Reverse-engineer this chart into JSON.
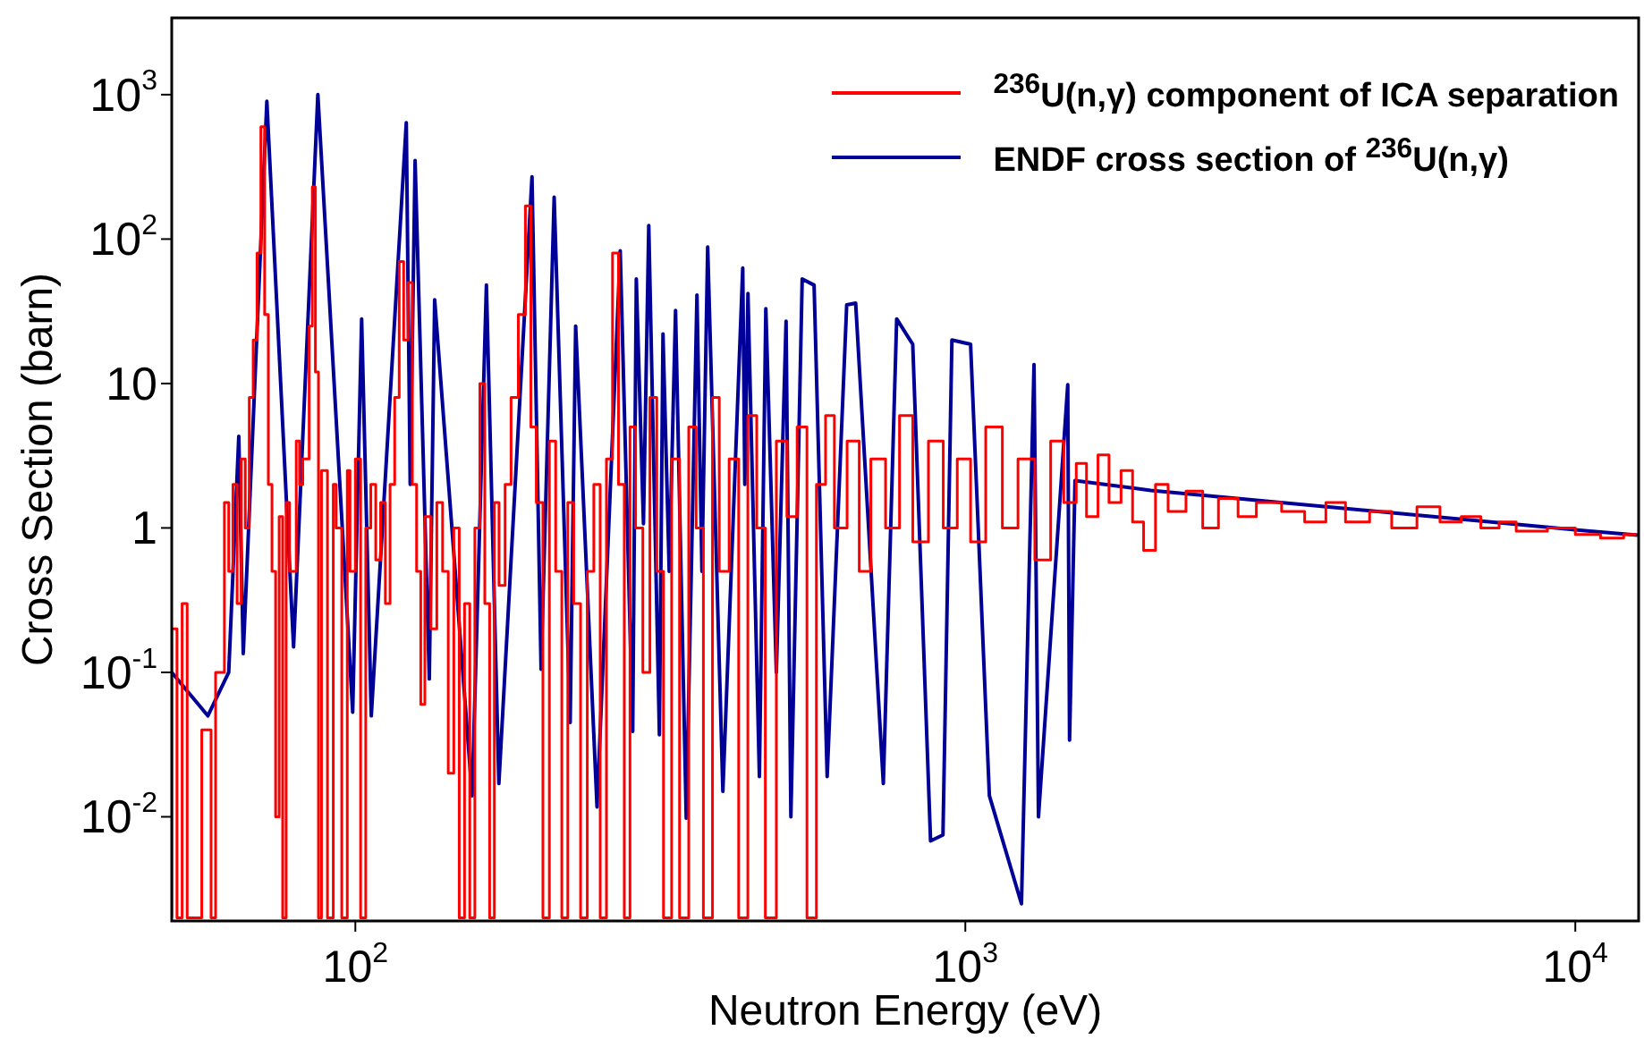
{
  "chart_data": {
    "type": "line",
    "xlabel": "Neutron Energy (eV)",
    "ylabel": "Cross Section (barn)",
    "log": "xy",
    "legend": "top right",
    "marker": "none",
    "xlim": [
      50,
      12700
    ],
    "ylim": [
      0.0019,
      3400
    ],
    "xticks": [
      {
        "value": 100,
        "label": "10$^{2}$"
      },
      {
        "value": 1000,
        "label": "10$^{3}$"
      },
      {
        "value": 10000,
        "label": "10$^{4}$"
      }
    ],
    "yticks": [
      {
        "value": 0.01,
        "label": "10$^{-2}$"
      },
      {
        "value": 0.1,
        "label": "10$^{-1}$"
      },
      1,
      10,
      {
        "value": 100,
        "label": "10$^{2}$"
      },
      {
        "value": 1000,
        "label": "10$^{3}$"
      }
    ],
    "series": [
      {
        "name": "$^{236}$U(n,γ) component of ICA separation",
        "type": "step",
        "color": "#ff0000",
        "x": [
          50,
          51,
          52,
          53,
          54,
          56,
          58,
          59,
          61,
          62,
          63,
          64,
          65,
          66,
          67,
          68,
          69,
          70,
          71,
          72,
          73,
          74,
          75,
          76,
          77,
          78,
          80,
          81,
          82,
          84,
          85,
          86,
          87,
          88,
          90,
          92,
          93,
          95,
          97,
          98,
          100,
          102,
          104,
          106,
          108,
          110,
          112,
          114,
          116,
          118,
          120,
          122,
          124,
          126,
          128,
          130,
          133,
          136,
          139,
          142,
          145,
          148,
          151,
          154,
          157,
          160,
          163,
          166,
          169,
          172,
          176,
          180,
          185,
          190,
          194,
          198,
          203,
          208,
          213,
          218,
          223,
          228,
          234,
          240,
          246,
          252,
          258,
          264,
          270,
          276,
          282,
          288,
          296,
          304,
          312,
          320,
          330,
          340,
          352,
          362,
          372,
          385,
          395,
          410,
          425,
          440,
          455,
          470,
          490,
          510,
          530,
          550,
          570,
          590,
          610,
          640,
          670,
          700,
          740,
          780,
          820,
          870,
          920,
          970,
          1020,
          1080,
          1150,
          1220,
          1300,
          1380,
          1450,
          1520,
          1580,
          1650,
          1720,
          1800,
          1880,
          1960,
          2050,
          2150,
          2300,
          2450,
          2600,
          2800,
          3000,
          3300,
          3600,
          3900,
          4200,
          4600,
          5000,
          5500,
          6000,
          6500,
          7000,
          7500,
          8000,
          9000,
          10000,
          11000,
          12000,
          12600
        ],
        "values": [
          0.002,
          0.2,
          0.002,
          0.3,
          0.002,
          0.002,
          0.04,
          0.002,
          0.1,
          1.5,
          0.5,
          2,
          0.3,
          3,
          1,
          8,
          20,
          80,
          600,
          30,
          2,
          0.5,
          0.01,
          1.2,
          0.002,
          1.5,
          0.5,
          4,
          2,
          3,
          25,
          230,
          12,
          0.002,
          2.5,
          0.002,
          2,
          1,
          0.002,
          2.5,
          0.5,
          3,
          0.002,
          1,
          2,
          0.6,
          1.5,
          0.3,
          2,
          8,
          70,
          20,
          50,
          2,
          0.5,
          0.06,
          1.2,
          0.2,
          1.5,
          0.5,
          0.02,
          1,
          0.002,
          0.3,
          0.002,
          1,
          10,
          0.3,
          0.002,
          1.5,
          0.4,
          2,
          8,
          30,
          170,
          5,
          1.5,
          0.002,
          4,
          0.5,
          0.002,
          1.5,
          0.3,
          0.002,
          0.5,
          2,
          0.002,
          3,
          80,
          2,
          0.002,
          5,
          1,
          0.1,
          8,
          0.5,
          0.002,
          3,
          0.002,
          5,
          1,
          0.002,
          8,
          0.5,
          3,
          0.002,
          6,
          1,
          0.002,
          4,
          1.2,
          5,
          0.002,
          2,
          6,
          1,
          4,
          0.5,
          3,
          1,
          6,
          0.8,
          4,
          1,
          3,
          0.8,
          5,
          1,
          3,
          0.6,
          4,
          1.5,
          2.8,
          1.2,
          3.2,
          1.5,
          2.5,
          1.1,
          0.7,
          2,
          1.3,
          1.8,
          1,
          1.6,
          1.2,
          1.5,
          1.3,
          1.1,
          1.5,
          1.1,
          1.3,
          1,
          1.4,
          1.1,
          1.2,
          1,
          1.1,
          0.95,
          1,
          0.9,
          0.85,
          0.9
        ]
      },
      {
        "name": "ENDF cross section of $^{236}$U(n,γ)",
        "type": "line",
        "color": "#000099",
        "x": [
          50,
          57.3,
          62,
          64.4,
          65.5,
          71.6,
          79.2,
          86.8,
          99,
          102.4,
          106.2,
          121.2,
          123,
          125.3,
          132.2,
          134.9,
          155.4,
          164,
          171.9,
          194.8,
          201.6,
          211.8,
          225,
          229.7,
          249,
          271.8,
          284.9,
          288.8,
          296.7,
          302.7,
          315.1,
          319.4,
          327,
          334.9,
          348.7,
          363.1,
          370,
          378.1,
          400.4,
          431.6,
          435,
          440.2,
          459.6,
          470.9,
          490,
          508.3,
          517.6,
          540.2,
          565,
          593.6,
          639,
          661,
          733.8,
          771.7,
          819.9,
          877,
          919,
          950.6,
          1020,
          1095,
          1236,
          1296,
          1318,
          1472,
          1482,
          1513,
          2014,
          10000,
          12650
        ],
        "values": [
          0.1,
          0.05,
          0.1,
          4.3,
          0.135,
          900,
          0.15,
          1000,
          0.053,
          28,
          0.05,
          640,
          2,
          350,
          0.09,
          38,
          0.014,
          48,
          0.017,
          270,
          0.105,
          195,
          0.045,
          25,
          0.0117,
          83,
          0.039,
          53,
          1.07,
          124,
          0.037,
          22,
          0.5,
          32,
          0.0098,
          41,
          0.5,
          88,
          0.015,
          63,
          2,
          42,
          0.019,
          33,
          0.1,
          27,
          0.01,
          53,
          48,
          0.019,
          35,
          36,
          0.017,
          28,
          18.7,
          0.0068,
          0.0075,
          20,
          18.7,
          0.014,
          0.0025,
          13.5,
          0.01,
          9.8,
          0.034,
          2.13,
          1.82,
          0.97,
          0.89
        ]
      }
    ]
  }
}
